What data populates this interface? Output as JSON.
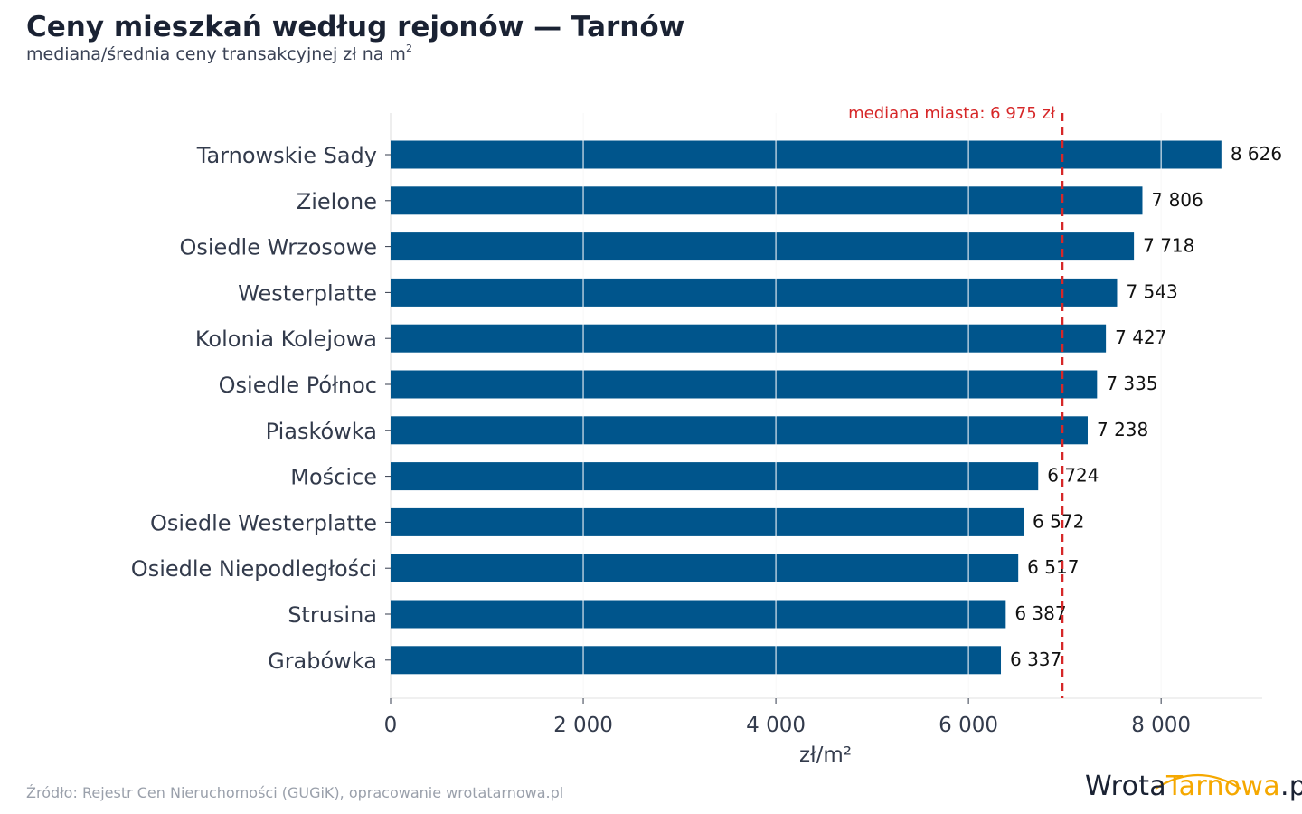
{
  "title": "Ceny mieszkań według rejonów — Tarnów",
  "subtitle": "mediana/średnia ceny transakcyjnej zł na m",
  "subtitle_sup": "2",
  "source": "Źródło: Rejestr Cen Nieruchomości (GUGiK), opracowanie wrotatarnowa.pl",
  "logo": {
    "part1": "Wrota",
    "part2": "Tarnowa",
    "part3": ".pl"
  },
  "colors": {
    "bar": "#00558c",
    "median_line": "#d62728",
    "grid": "#e6e6e6",
    "text": "#333b4c",
    "logo_dark": "#1a2233",
    "logo_accent": "#f5a800"
  },
  "chart_data": {
    "type": "bar",
    "orientation": "horizontal",
    "categories": [
      "Tarnowskie Sady",
      "Zielone",
      "Osiedle Wrzosowe",
      "Westerplatte",
      "Kolonia Kolejowa",
      "Osiedle Północ",
      "Piaskówka",
      "Mościce",
      "Osiedle Westerplatte",
      "Osiedle Niepodległości",
      "Strusina",
      "Grabówka"
    ],
    "values": [
      8626,
      7806,
      7718,
      7543,
      7427,
      7335,
      7238,
      6724,
      6572,
      6517,
      6387,
      6337
    ],
    "value_labels": [
      "8 626",
      "7 806",
      "7 718",
      "7 543",
      "7 427",
      "7 335",
      "7 238",
      "6 724",
      "6 572",
      "6 517",
      "6 387",
      "6 337"
    ],
    "xlabel": "zł/m²",
    "xlim": [
      0,
      9050
    ],
    "xticks": [
      0,
      2000,
      4000,
      6000,
      8000
    ],
    "xtick_labels": [
      "0",
      "2 000",
      "4 000",
      "6 000",
      "8 000"
    ],
    "grid": true,
    "reference_line": {
      "value": 6975,
      "label": "mediana miasta: 6 975 zł"
    }
  }
}
